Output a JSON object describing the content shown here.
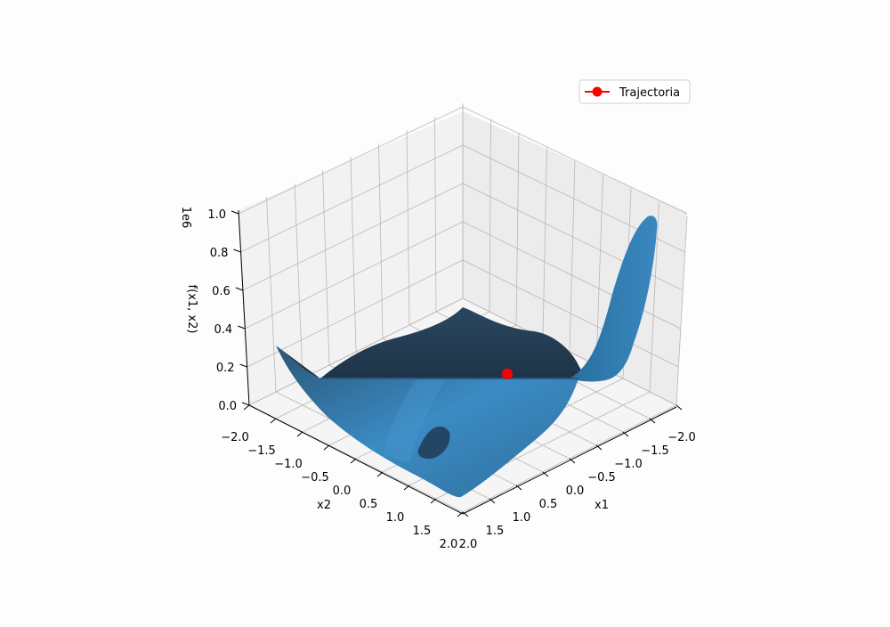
{
  "chart_data": {
    "type": "surface3d",
    "xlabel": "x1",
    "ylabel": "x2",
    "zlabel": "f(x1, x2)",
    "z_offset_label": "1e6",
    "x_ticks": [
      "−2.0",
      "−1.5",
      "−1.0",
      "−0.5",
      "0.0",
      "0.5",
      "1.0",
      "1.5",
      "2.0"
    ],
    "y_ticks": [
      "−2.0",
      "−1.5",
      "−1.0",
      "−0.5",
      "0.0",
      "0.5",
      "1.0",
      "1.5",
      "2.0"
    ],
    "z_ticks": [
      "0.0",
      "0.2",
      "0.4",
      "0.6",
      "0.8",
      "1.0"
    ],
    "xlim": [
      -2,
      2
    ],
    "ylim": [
      -2,
      2
    ],
    "zlim": [
      0,
      1.0
    ],
    "surface_color": "#3b8bc4",
    "surface_dark_color": "#1f3a52",
    "series": [
      {
        "name": "Trajectoria",
        "color": "#ff0000",
        "marker": "circle",
        "points": [
          {
            "x1": 0.0,
            "x2": 0.0,
            "z": 0.15
          }
        ]
      }
    ],
    "legend": {
      "placement": "top-right",
      "entries": [
        "Trajectoria"
      ]
    },
    "grid": true
  }
}
